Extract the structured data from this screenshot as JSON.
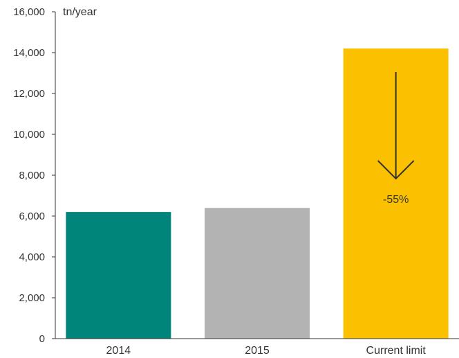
{
  "chart_data": {
    "type": "bar",
    "title": "",
    "xlabel": "",
    "ylabel": "tn/year",
    "ylim": [
      0,
      16000
    ],
    "yticks": [
      0,
      2000,
      4000,
      6000,
      8000,
      10000,
      12000,
      14000,
      16000
    ],
    "ytick_labels": [
      "0",
      "2,000",
      "4,000",
      "6,000",
      "8,000",
      "10,000",
      "12,000",
      "14,000",
      "16,000"
    ],
    "categories": [
      "2014",
      "2015",
      "Current limit"
    ],
    "values": [
      6200,
      6400,
      14200
    ],
    "colors": [
      "#00857A",
      "#B3B3B3",
      "#FBC100"
    ],
    "grid": false,
    "annotation": {
      "text": "-55%",
      "category": "Current limit",
      "arrow": "down",
      "arrow_color": "#333333"
    }
  }
}
